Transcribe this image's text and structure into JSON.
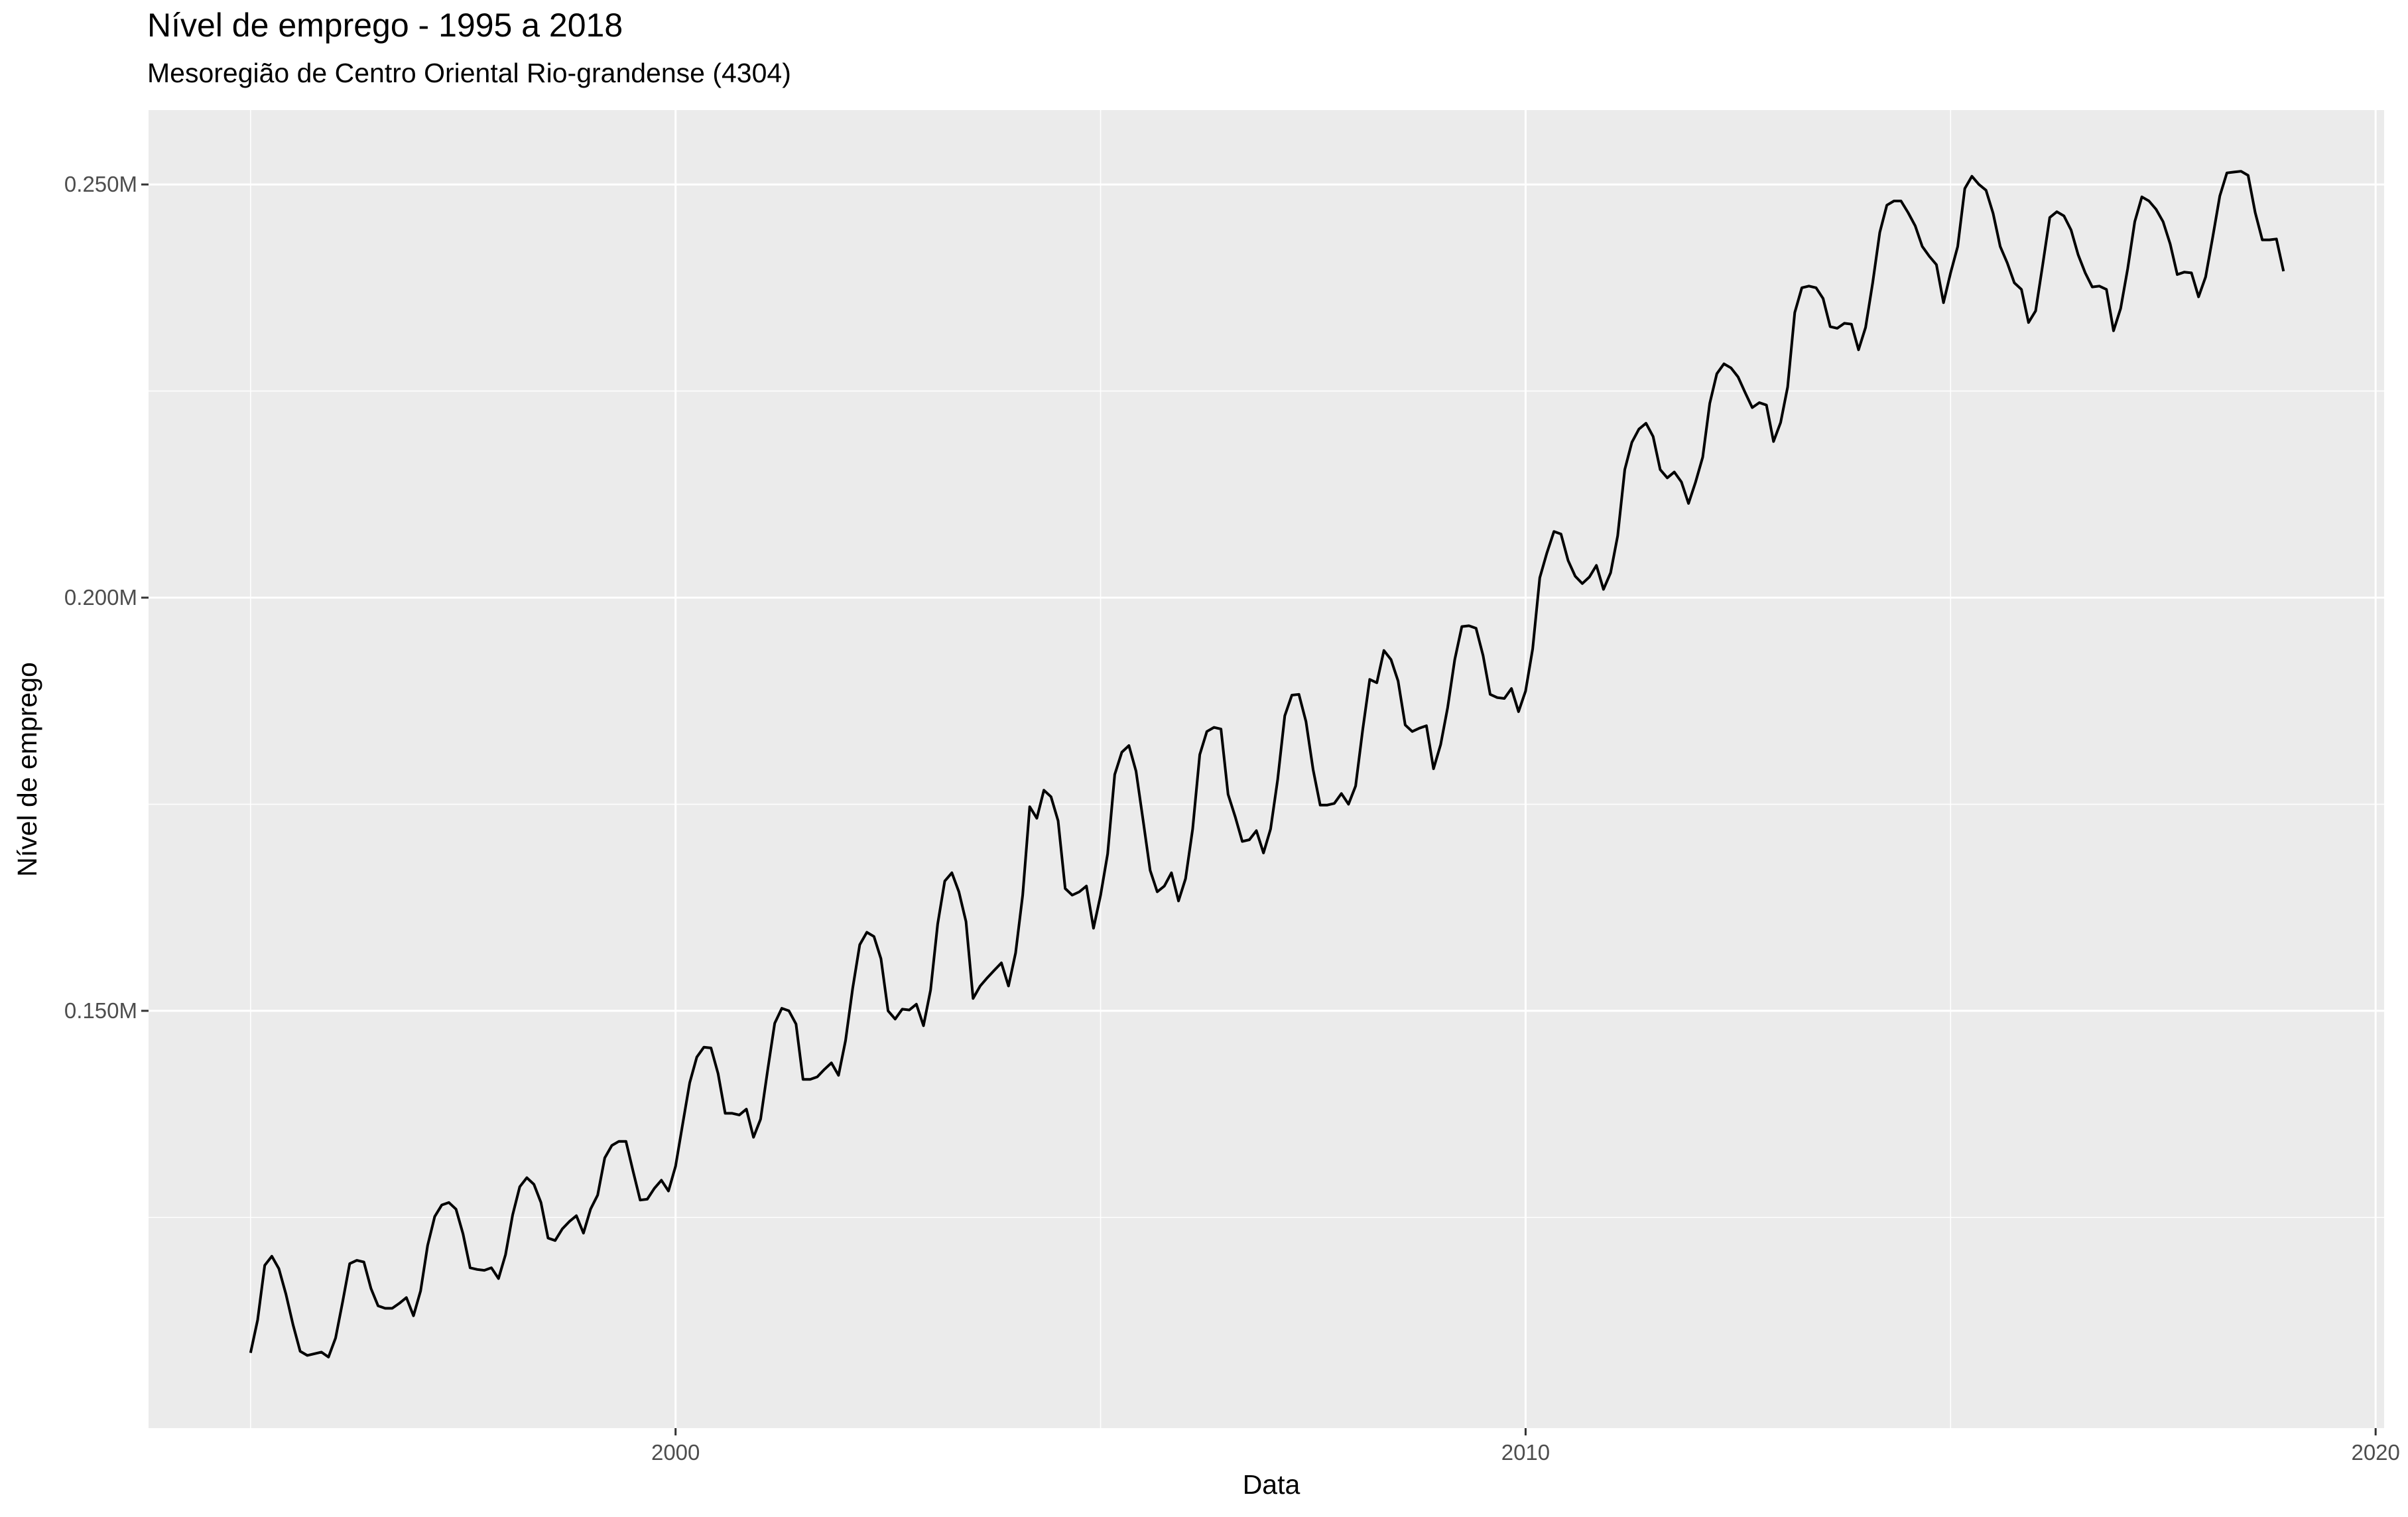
{
  "chart_data": {
    "type": "line",
    "title": "Nível de emprego - 1995 a 2018",
    "subtitle": "Mesoregião de Centro Oriental Rio-grandense (4304)",
    "xlabel": "Data",
    "ylabel": "Nível de emprego",
    "xlim": [
      1993.8,
      2020.1
    ],
    "ylim": [
      0.0995,
      0.259
    ],
    "x_ticks": [
      {
        "value": 2000,
        "label": "2000"
      },
      {
        "value": 2010,
        "label": "2010"
      },
      {
        "value": 2020,
        "label": "2020"
      }
    ],
    "y_ticks": [
      {
        "value": 0.15,
        "label": "0.150M"
      },
      {
        "value": 0.2,
        "label": "0.200M"
      },
      {
        "value": 0.25,
        "label": "0.250M"
      }
    ],
    "y_minor": [
      0.125,
      0.175,
      0.225
    ],
    "grid": true,
    "line_color": "#000000",
    "panel_color": "#ebebeb",
    "series": [
      {
        "x_start": 1995.0,
        "step": 0.0833333,
        "values": [
          0.1086,
          0.1126,
          0.1192,
          0.1203,
          0.1188,
          0.1157,
          0.112,
          0.1088,
          0.1083,
          0.1085,
          0.1087,
          0.1081,
          0.1104,
          0.1148,
          0.1194,
          0.1198,
          0.1196,
          0.1164,
          0.1143,
          0.114,
          0.114,
          0.1146,
          0.1153,
          0.1131,
          0.1161,
          0.1216,
          0.1251,
          0.1265,
          0.1268,
          0.126,
          0.123,
          0.1189,
          0.1187,
          0.1186,
          0.1189,
          0.1176,
          0.1205,
          0.1253,
          0.1287,
          0.1298,
          0.129,
          0.1268,
          0.1225,
          0.1222,
          0.1236,
          0.1245,
          0.1252,
          0.1231,
          0.126,
          0.1277,
          0.1322,
          0.1337,
          0.1342,
          0.1342,
          0.1306,
          0.1271,
          0.1272,
          0.1285,
          0.1295,
          0.1282,
          0.1312,
          0.1363,
          0.1413,
          0.1444,
          0.1456,
          0.1455,
          0.1424,
          0.1376,
          0.1376,
          0.1374,
          0.1381,
          0.1347,
          0.1369,
          0.1428,
          0.1485,
          0.1503,
          0.15,
          0.1484,
          0.1417,
          0.1417,
          0.142,
          0.1429,
          0.1437,
          0.1422,
          0.1464,
          0.1527,
          0.158,
          0.1595,
          0.159,
          0.1563,
          0.15,
          0.149,
          0.1502,
          0.1501,
          0.1508,
          0.1482,
          0.1525,
          0.1605,
          0.1657,
          0.1667,
          0.1644,
          0.1608,
          0.1515,
          0.153,
          0.154,
          0.1549,
          0.1558,
          0.153,
          0.157,
          0.164,
          0.1747,
          0.1733,
          0.1767,
          0.1759,
          0.173,
          0.1648,
          0.164,
          0.1644,
          0.1651,
          0.16,
          0.164,
          0.169,
          0.1786,
          0.1813,
          0.1821,
          0.179,
          0.1731,
          0.167,
          0.1644,
          0.1651,
          0.1667,
          0.1633,
          0.166,
          0.172,
          0.181,
          0.1838,
          0.1843,
          0.1841,
          0.1762,
          0.1735,
          0.1705,
          0.1707,
          0.1718,
          0.1691,
          0.172,
          0.178,
          0.1857,
          0.1882,
          0.1883,
          0.185,
          0.1792,
          0.1749,
          0.1749,
          0.1751,
          0.1763,
          0.175,
          0.1772,
          0.184,
          0.1901,
          0.1897,
          0.1936,
          0.1925,
          0.1899,
          0.1846,
          0.1838,
          0.1842,
          0.1845,
          0.1793,
          0.1822,
          0.1867,
          0.1925,
          0.1965,
          0.1966,
          0.1963,
          0.193,
          0.1883,
          0.1879,
          0.1878,
          0.189,
          0.1862,
          0.1887,
          0.1938,
          0.2024,
          0.2054,
          0.208,
          0.2077,
          0.2045,
          0.2026,
          0.2017,
          0.2025,
          0.2039,
          0.201,
          0.203,
          0.2075,
          0.2155,
          0.2188,
          0.2204,
          0.2211,
          0.2195,
          0.2155,
          0.2145,
          0.2152,
          0.214,
          0.2114,
          0.214,
          0.217,
          0.2235,
          0.2271,
          0.2283,
          0.2278,
          0.2267,
          0.2248,
          0.223,
          0.2236,
          0.2233,
          0.2189,
          0.2212,
          0.2255,
          0.2345,
          0.2375,
          0.2377,
          0.2375,
          0.2362,
          0.2328,
          0.2326,
          0.2332,
          0.2331,
          0.23,
          0.2327,
          0.2381,
          0.2442,
          0.2475,
          0.248,
          0.248,
          0.2466,
          0.245,
          0.2425,
          0.2413,
          0.2403,
          0.2357,
          0.2393,
          0.2425,
          0.2495,
          0.251,
          0.25,
          0.2493,
          0.2465,
          0.2425,
          0.2405,
          0.2381,
          0.2373,
          0.2333,
          0.2347,
          0.2403,
          0.246,
          0.2467,
          0.2462,
          0.2445,
          0.2415,
          0.2393,
          0.2376,
          0.2377,
          0.2373,
          0.2323,
          0.235,
          0.2398,
          0.2455,
          0.2485,
          0.248,
          0.247,
          0.2455,
          0.2428,
          0.2391,
          0.2394,
          0.2393,
          0.2364,
          0.2388,
          0.2436,
          0.2486,
          0.2514,
          0.2515,
          0.2516,
          0.2511,
          0.2466,
          0.2433,
          0.2433,
          0.2434,
          0.2395
        ]
      }
    ]
  }
}
